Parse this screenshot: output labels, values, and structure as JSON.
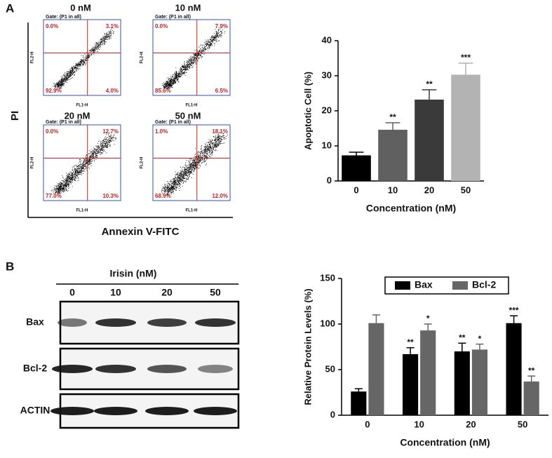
{
  "panel_labels": [
    "A",
    "B"
  ],
  "flow": {
    "y_label": "PI",
    "x_label": "Annexin V-FITC",
    "fl_x_label": "FL1-H",
    "fl_y_label": "FL2-H",
    "plots": [
      {
        "title": "0 nM",
        "gate": "Gate: (P1 in all)",
        "quadrants": [
          "0.0%",
          "3.1%",
          "92.9%",
          "4.0%"
        ]
      },
      {
        "title": "10 nM",
        "gate": "Gate: (P1 in all)",
        "quadrants": [
          "0.0%",
          "7.9%",
          "85.6%",
          "6.5%"
        ]
      },
      {
        "title": "20 nM",
        "gate": "Gate: (P1 in all)",
        "quadrants": [
          "0.0%",
          "12.7%",
          "77.0%",
          "10.3%"
        ]
      },
      {
        "title": "50 nM",
        "gate": "Gate: (P1 in all)",
        "quadrants": [
          "1.0%",
          "18.1%",
          "68.9%",
          "12.0%"
        ]
      }
    ]
  },
  "blot": {
    "header": "Irisin (nM)",
    "lanes": [
      "0",
      "10",
      "20",
      "50"
    ],
    "rows": [
      "Bax",
      "Bcl-2",
      "ACTIN"
    ]
  },
  "chart_data": [
    {
      "type": "bar",
      "y_label": "Apoptotic Cell (%)",
      "x_label": "Concentration (nM)",
      "categories": [
        "0",
        "10",
        "20",
        "50"
      ],
      "values": [
        7.3,
        14.6,
        23.2,
        30.3
      ],
      "errors": [
        0.9,
        2.0,
        2.8,
        3.3
      ],
      "significance": [
        null,
        "**",
        "**",
        "***"
      ],
      "colors": [
        "#000000",
        "#606060",
        "#3a3a3a",
        "#b3b3b3"
      ],
      "ylim": [
        0,
        40
      ],
      "yticks": [
        0,
        10,
        20,
        30,
        40
      ]
    },
    {
      "type": "grouped_bar",
      "y_label": "Relative Protein Levels (%)",
      "x_label": "Concentration (nM)",
      "categories": [
        "0",
        "10",
        "20",
        "50"
      ],
      "legend": "top",
      "series": [
        {
          "name": "Bax",
          "color": "#000000",
          "values": [
            26,
            67,
            70,
            101
          ],
          "errors": [
            3,
            7,
            9,
            8
          ],
          "significance": [
            null,
            "**",
            "**",
            "***"
          ]
        },
        {
          "name": "Bcl-2",
          "color": "#666666",
          "values": [
            101,
            93,
            72,
            37
          ],
          "errors": [
            9,
            7,
            6,
            6
          ],
          "significance": [
            null,
            "*",
            "*",
            "**"
          ]
        }
      ],
      "ylim": [
        0,
        150
      ],
      "yticks": [
        0,
        50,
        100,
        150
      ]
    }
  ]
}
